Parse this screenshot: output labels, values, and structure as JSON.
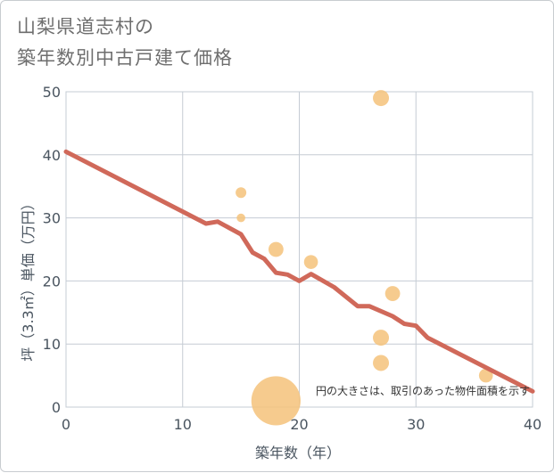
{
  "title_lines": [
    "山梨県道志村の",
    "築年数別中古戸建て価格"
  ],
  "chart_data": {
    "type": "scatter",
    "title": "山梨県道志村の築年数別中古戸建て価格",
    "xlabel": "築年数（年）",
    "ylabel": "坪（3.3㎡）単価（万円）",
    "xlim": [
      0,
      40
    ],
    "ylim": [
      0,
      50
    ],
    "xticks": [
      0,
      10,
      20,
      30,
      40
    ],
    "yticks": [
      0,
      10,
      20,
      30,
      40,
      50
    ],
    "grid": true,
    "note": "円の大きさは、取引のあった物件面積を示す",
    "colors": {
      "bubble": "#f5c27a",
      "trend": "#d0695a",
      "grid": "#c5ccd4"
    },
    "points": [
      {
        "x": 15,
        "y": 34,
        "size": 1
      },
      {
        "x": 15,
        "y": 30,
        "size": 0.8
      },
      {
        "x": 18,
        "y": 25,
        "size": 1.4
      },
      {
        "x": 21,
        "y": 23,
        "size": 1.3
      },
      {
        "x": 27,
        "y": 49,
        "size": 1.5
      },
      {
        "x": 28,
        "y": 18,
        "size": 1.4
      },
      {
        "x": 27,
        "y": 11,
        "size": 1.5
      },
      {
        "x": 27,
        "y": 7,
        "size": 1.5
      },
      {
        "x": 36,
        "y": 5,
        "size": 1.3
      },
      {
        "x": 18,
        "y": 1,
        "size": 4.6
      }
    ],
    "trend_line": [
      {
        "x": 0,
        "y": 40.5
      },
      {
        "x": 12,
        "y": 29.1
      },
      {
        "x": 13,
        "y": 29.4
      },
      {
        "x": 15,
        "y": 27.4
      },
      {
        "x": 16,
        "y": 24.5
      },
      {
        "x": 17,
        "y": 23.5
      },
      {
        "x": 18,
        "y": 21.3
      },
      {
        "x": 19,
        "y": 21
      },
      {
        "x": 20,
        "y": 20
      },
      {
        "x": 21,
        "y": 21.1
      },
      {
        "x": 23,
        "y": 19
      },
      {
        "x": 25,
        "y": 16
      },
      {
        "x": 26,
        "y": 16
      },
      {
        "x": 28,
        "y": 14.4
      },
      {
        "x": 29,
        "y": 13.2
      },
      {
        "x": 30,
        "y": 12.9
      },
      {
        "x": 31,
        "y": 11
      },
      {
        "x": 40,
        "y": 2.5
      }
    ]
  }
}
